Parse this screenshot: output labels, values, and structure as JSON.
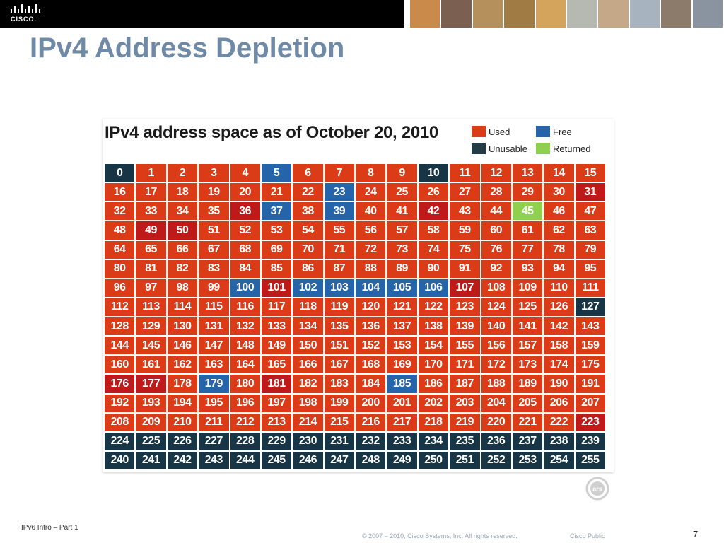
{
  "header": {
    "logo_text": "CISCO.",
    "photo_colors": [
      "#c98a4a",
      "#7b5f50",
      "#b5905c",
      "#a07c44",
      "#d4a45c",
      "#b6b9b2",
      "#c4a888",
      "#a7b4c0",
      "#8c7a6a",
      "#8a94a0"
    ]
  },
  "slide": {
    "title": "IPv4 Address Depletion"
  },
  "figure": {
    "heading": "IPv4 address space as of October 20, 2010",
    "legend": [
      {
        "key": "U",
        "label": "Used",
        "color": "#db3b17"
      },
      {
        "key": "F",
        "label": "Free",
        "color": "#2564a8"
      },
      {
        "key": "X",
        "label": "Unusable",
        "color": "#233a47"
      },
      {
        "key": "R",
        "label": "Returned",
        "color": "#8fd14f"
      }
    ],
    "colors": {
      "U": "#db3b17",
      "F": "#2564a8",
      "X": "#173545",
      "R": "#8fd14f",
      "A": "#be1a1a"
    },
    "status_rows": [
      "XUUUUFUUUUXUUUUU",
      "UUUUUUUFUUUUUUUA",
      "UUUUAFUFUUAUURUU",
      "UAAUUUUUUUUUUUUU",
      "UUUUUUUUUUUUUUUU",
      "UUUUUUUUUUUUUUUU",
      "UUUUFAFFFFFAUUUU",
      "UUUUUUUUUUUUUUUX",
      "UUUUUUUUUUUUUUUU",
      "UUUUUUUUUUUUUUUU",
      "UUUUUUUUUUUUUUUU",
      "AAUFUAUUUFUUUUUU",
      "UUUUUUUUUUUUUUUU",
      "UUUUUUUUUUUUUUUA",
      "XXXXXXXXXXXXXXXX",
      "XXXXXXXXXXXXXXXX"
    ],
    "watermark": "ars"
  },
  "footer": {
    "left": "IPv6 Intro – Part 1",
    "copyright": "© 2007 – 2010, Cisco Systems, Inc. All rights reserved.",
    "classification": "Cisco Public",
    "page_number": "7"
  }
}
